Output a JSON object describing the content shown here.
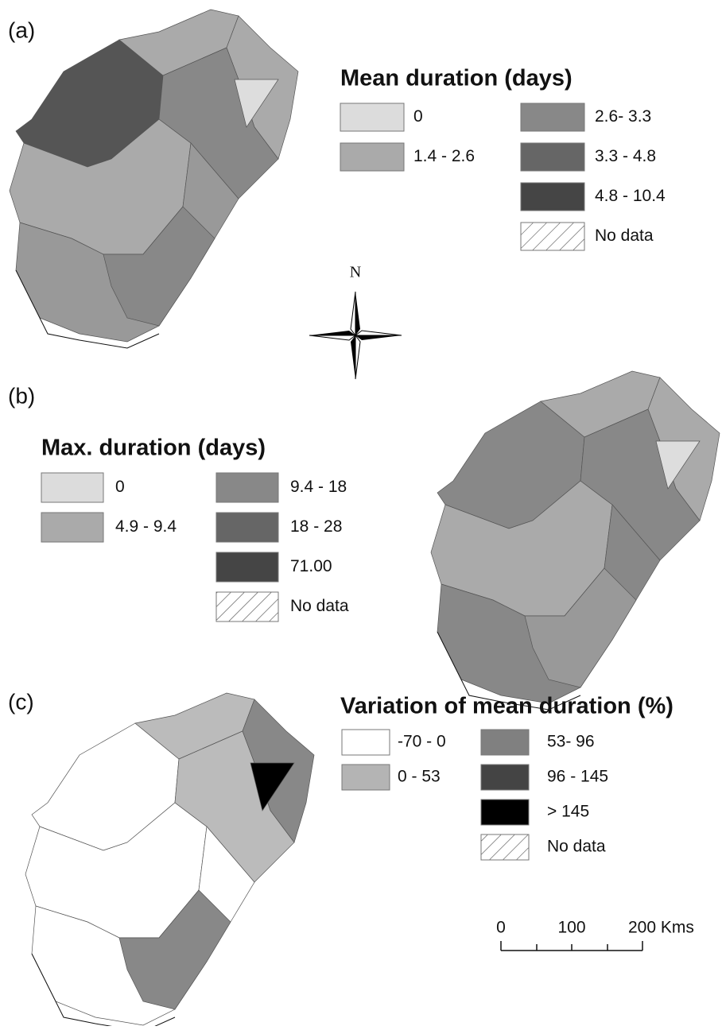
{
  "panels": [
    {
      "label": "(a)",
      "legend": {
        "title": "Mean duration (days)",
        "items": [
          {
            "label": "0",
            "color": "#dcdcdc"
          },
          {
            "label": "1.4 - 2.6",
            "color": "#aaaaaa"
          },
          {
            "label": "2.6- 3.3",
            "color": "#888888"
          },
          {
            "label": "3.3 - 4.8",
            "color": "#666666"
          },
          {
            "label": "4.8 - 10.4",
            "color": "#454545"
          },
          {
            "label": "No data",
            "pattern": "hatched"
          }
        ]
      }
    },
    {
      "label": "(b)",
      "legend": {
        "title": "Max. duration (days)",
        "items": [
          {
            "label": "0",
            "color": "#dcdcdc"
          },
          {
            "label": "4.9 - 9.4",
            "color": "#aaaaaa"
          },
          {
            "label": "9.4 - 18",
            "color": "#888888"
          },
          {
            "label": "18 - 28",
            "color": "#666666"
          },
          {
            "label": "71.00",
            "color": "#454545"
          },
          {
            "label": "No data",
            "pattern": "hatched"
          }
        ]
      }
    },
    {
      "label": "(c)",
      "legend": {
        "title": "Variation of mean duration  (%)",
        "items": [
          {
            "label": "-70 - 0",
            "color": "#ffffff"
          },
          {
            "label": "0 - 53",
            "color": "#b4b4b4"
          },
          {
            "label": "53- 96",
            "color": "#808080"
          },
          {
            "label": "96 - 145",
            "color": "#444444"
          },
          {
            "label": "> 145",
            "color": "#000000"
          },
          {
            "label": "No data",
            "pattern": "hatched"
          }
        ]
      }
    }
  ],
  "north": "N",
  "scale_bar": [
    "0",
    "100",
    "200 Kms"
  ]
}
